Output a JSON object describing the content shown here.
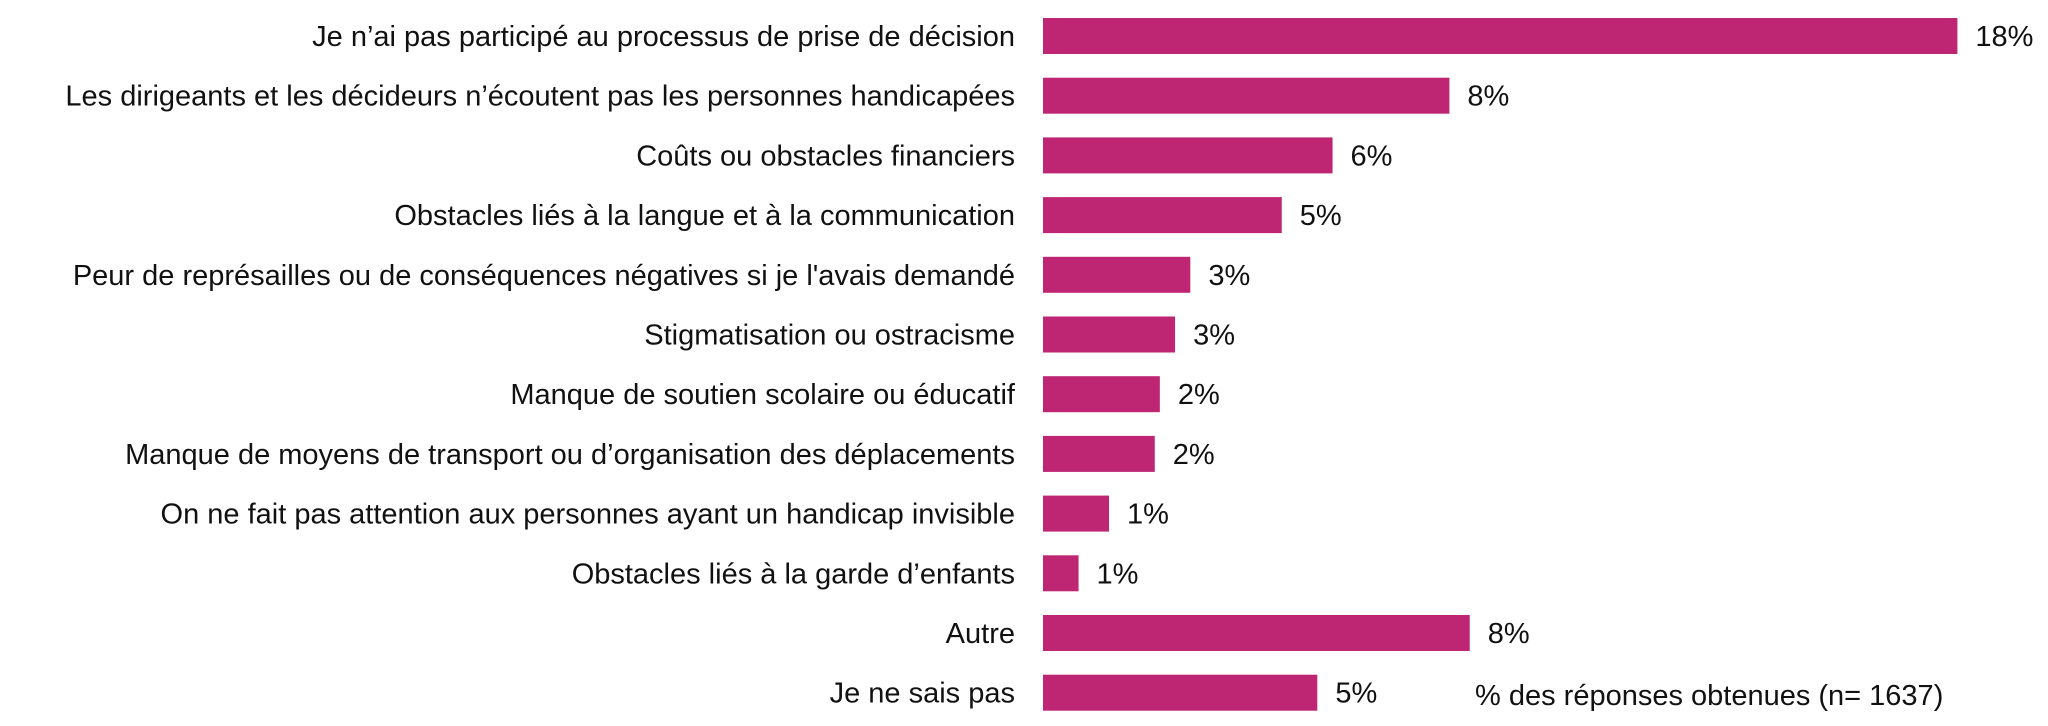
{
  "chart_data": {
    "type": "bar",
    "orientation": "horizontal",
    "categories": [
      "Je n’ai pas participé au processus de prise de décision",
      "Les dirigeants et les décideurs n’écoutent pas les personnes handicapées",
      "Coûts ou obstacles financiers",
      "Obstacles liés à la langue et à la communication",
      "Peur de représailles ou de conséquences négatives si je l'avais demandé",
      "Stigmatisation ou ostracisme",
      "Manque de soutien scolaire ou éducatif",
      "Manque de moyens de transport ou d’organisation des déplacements",
      "On ne fait pas attention aux personnes ayant un handicap invisible",
      "Obstacles liés à la garde d’enfants",
      "Autre",
      "Je ne sais pas"
    ],
    "values": [
      18.0,
      8.0,
      5.7,
      4.7,
      2.9,
      2.6,
      2.3,
      2.2,
      1.3,
      0.7,
      8.4,
      5.4
    ],
    "value_labels": [
      "18%",
      "8%",
      "6%",
      "5%",
      "3%",
      "3%",
      "2%",
      "2%",
      "1%",
      "1%",
      "8%",
      "5%"
    ],
    "note": "% des réponses obtenues (n= 1637)",
    "xlim": [
      0,
      18
    ],
    "grid": false,
    "legend": "none",
    "bar_color": "#BE2673"
  }
}
